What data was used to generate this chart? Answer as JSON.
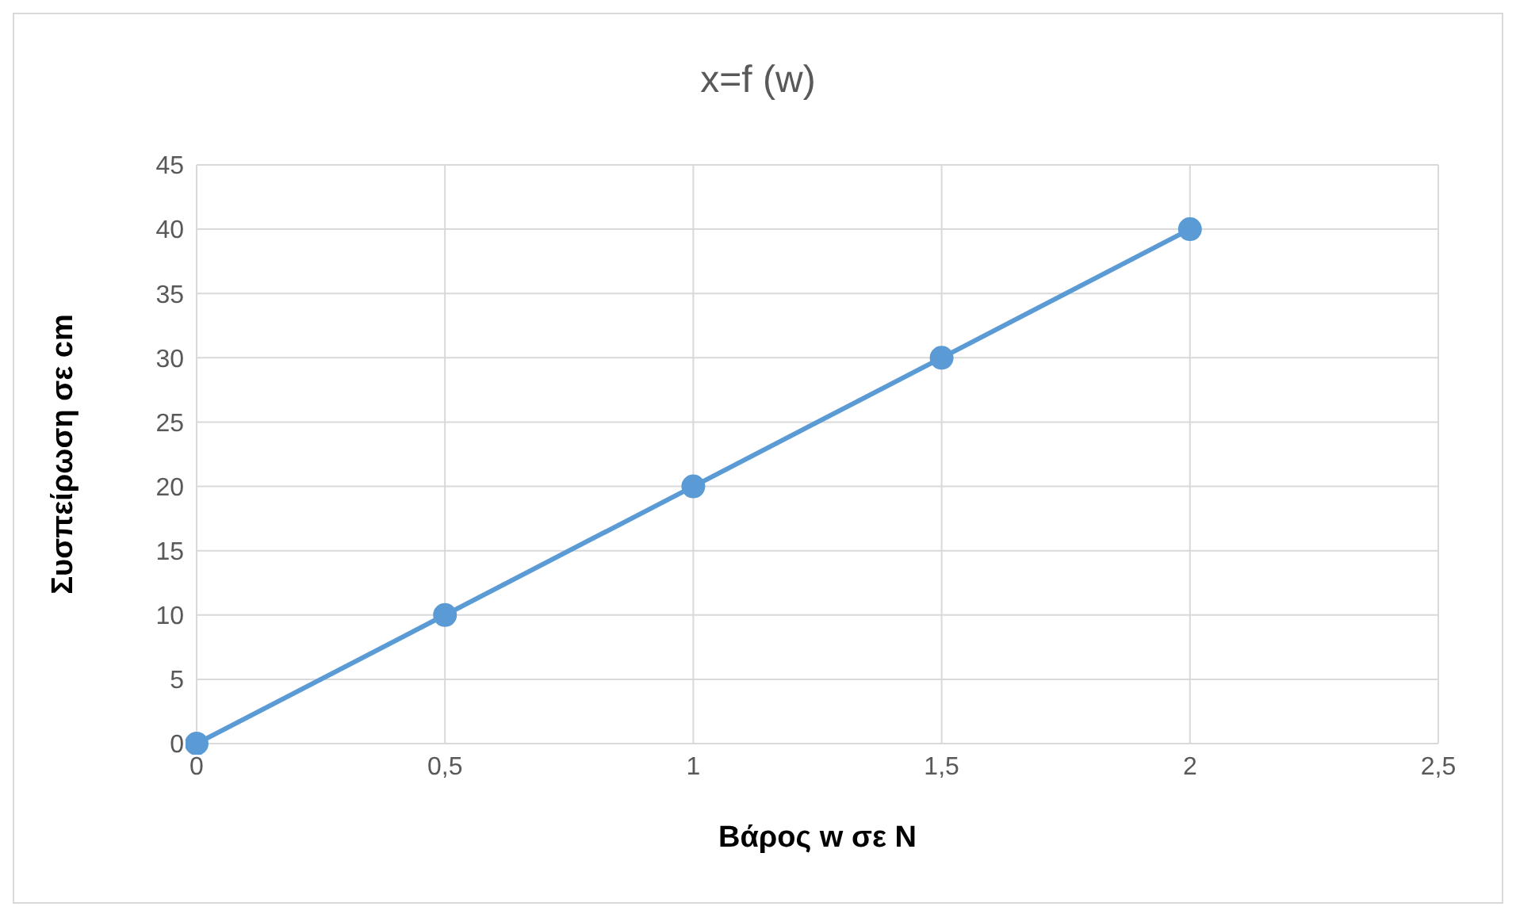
{
  "chart_data": {
    "type": "line",
    "title": "x=f (w)",
    "xlabel": "Βάρος w  σε N",
    "ylabel": "Συσπείρωση σε cm",
    "x": [
      0,
      0.5,
      1,
      1.5,
      2
    ],
    "series": [
      {
        "color": "#5b9bd5",
        "values": [
          0,
          10,
          20,
          30,
          40
        ]
      }
    ],
    "xlim": [
      0,
      2.5
    ],
    "xticks": [
      0,
      {
        "value": 0.5,
        "label": "0,5"
      },
      1,
      {
        "value": 1.5,
        "label": "1,5"
      },
      2,
      {
        "value": 2.5,
        "label": "2,5"
      }
    ],
    "ylim": [
      0,
      45
    ],
    "yticks": [
      0,
      5,
      10,
      15,
      20,
      25,
      30,
      35,
      40,
      45
    ],
    "grid": true,
    "marker": "circle",
    "line_style": "solid"
  }
}
